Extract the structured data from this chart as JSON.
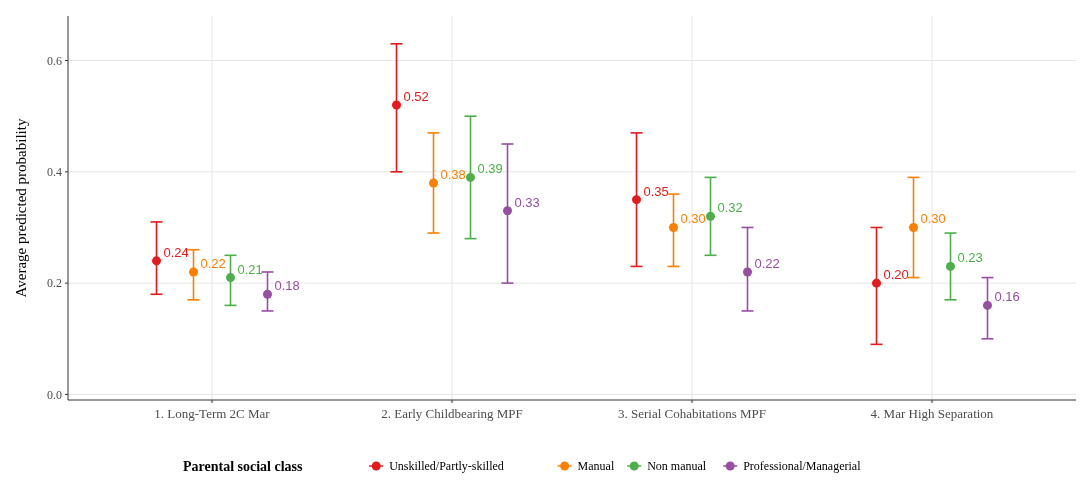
{
  "chart_data": {
    "type": "scatter",
    "ylabel": "Average predicted probability",
    "legend_title": "Parental social class",
    "categories": [
      "1. Long-Term 2C Mar",
      "2. Early Childbearing MPF",
      "3. Serial Cohabitations MPF",
      "4. Mar High Separation"
    ],
    "ylim": [
      -0.01,
      0.68
    ],
    "yticks": [
      {
        "value": 0,
        "label": "0.0"
      },
      0.2,
      0.4,
      0.6
    ],
    "grid": true,
    "legend": "bottom",
    "marker": "circle",
    "series": [
      {
        "name": "Unskilled/Partly-skilled",
        "color": "#e41a1c",
        "values": [
          0.24,
          0.52,
          0.35,
          0.2
        ],
        "value_labels": [
          "0.24",
          "0.52",
          "0.35",
          "0.20"
        ],
        "errors": [
          [
            0.18,
            0.31
          ],
          [
            0.4,
            0.63
          ],
          [
            0.23,
            0.47
          ],
          [
            0.09,
            0.3
          ]
        ]
      },
      {
        "name": "Manual",
        "color": "#ff7f00",
        "values": [
          0.22,
          0.38,
          0.3,
          0.3
        ],
        "value_labels": [
          "0.22",
          "0.38",
          "0.30",
          "0.30"
        ],
        "errors": [
          [
            0.17,
            0.26
          ],
          [
            0.29,
            0.47
          ],
          [
            0.23,
            0.36
          ],
          [
            0.21,
            0.39
          ]
        ]
      },
      {
        "name": "Non manual",
        "color": "#4daf4a",
        "values": [
          0.21,
          0.39,
          0.32,
          0.23
        ],
        "value_labels": [
          "0.21",
          "0.39",
          "0.32",
          "0.23"
        ],
        "errors": [
          [
            0.16,
            0.25
          ],
          [
            0.28,
            0.5
          ],
          [
            0.25,
            0.39
          ],
          [
            0.17,
            0.29
          ]
        ]
      },
      {
        "name": "Professional/Managerial",
        "color": "#984ea3",
        "values": [
          0.18,
          0.33,
          0.22,
          0.16
        ],
        "value_labels": [
          "0.18",
          "0.33",
          "0.22",
          "0.16"
        ],
        "errors": [
          [
            0.15,
            0.22
          ],
          [
            0.2,
            0.45
          ],
          [
            0.15,
            0.3
          ],
          [
            0.1,
            0.21
          ]
        ]
      }
    ]
  }
}
